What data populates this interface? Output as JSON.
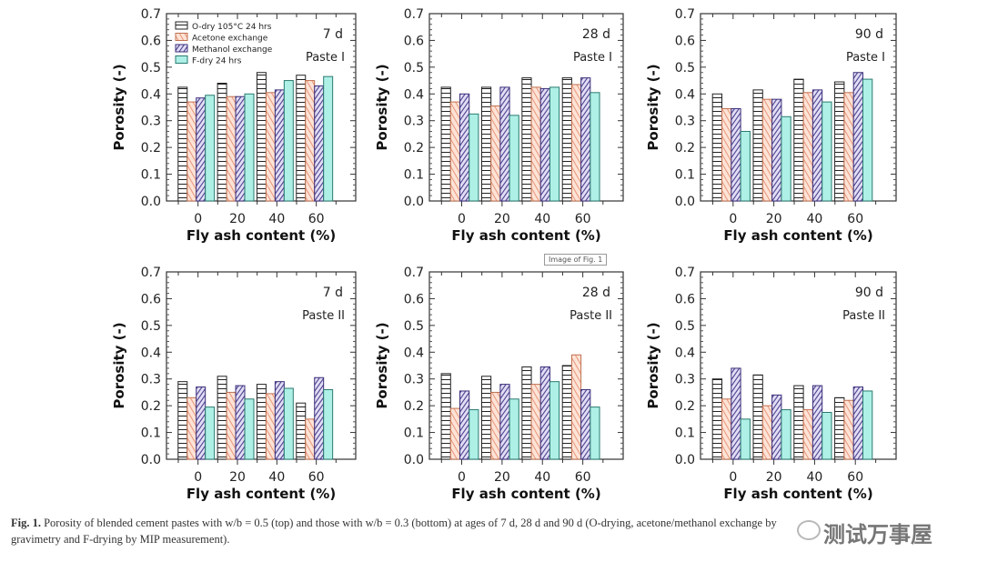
{
  "chart_data": [
    {
      "type": "bar",
      "title": "7 d",
      "subtitle": "Paste I",
      "xlabel": "Fly ash content (%)",
      "ylabel": "Porosity (-)",
      "categories": [
        "0",
        "20",
        "40",
        "60"
      ],
      "ylim": [
        0,
        0.7
      ],
      "yticks": [
        "0.0",
        "0.1",
        "0.2",
        "0.3",
        "0.4",
        "0.5",
        "0.6",
        "0.7"
      ],
      "legend": "top-left",
      "series": [
        {
          "name": "O-dry 105°C 24 hrs",
          "values": [
            0.425,
            0.44,
            0.48,
            0.47
          ]
        },
        {
          "name": "Acetone exchange",
          "values": [
            0.37,
            0.39,
            0.405,
            0.45
          ]
        },
        {
          "name": "Methanol exchange",
          "values": [
            0.385,
            0.39,
            0.415,
            0.43
          ]
        },
        {
          "name": "F-dry 24 hrs",
          "values": [
            0.395,
            0.4,
            0.45,
            0.465
          ]
        }
      ]
    },
    {
      "type": "bar",
      "title": "28 d",
      "subtitle": "Paste I",
      "xlabel": "Fly ash content (%)",
      "ylabel": "Porosity (-)",
      "categories": [
        "0",
        "20",
        "40",
        "60"
      ],
      "ylim": [
        0,
        0.7
      ],
      "yticks": [
        "0.0",
        "0.1",
        "0.2",
        "0.3",
        "0.4",
        "0.5",
        "0.6",
        "0.7"
      ],
      "series": [
        {
          "name": "O-dry 105°C 24 hrs",
          "values": [
            0.425,
            0.425,
            0.46,
            0.46
          ]
        },
        {
          "name": "Acetone exchange",
          "values": [
            0.37,
            0.355,
            0.425,
            0.435
          ]
        },
        {
          "name": "Methanol exchange",
          "values": [
            0.4,
            0.425,
            0.42,
            0.46
          ]
        },
        {
          "name": "F-dry 24 hrs",
          "values": [
            0.325,
            0.32,
            0.425,
            0.405
          ]
        }
      ]
    },
    {
      "type": "bar",
      "title": "90 d",
      "subtitle": "Paste I",
      "xlabel": "Fly ash content (%)",
      "ylabel": "Porosity (-)",
      "categories": [
        "0",
        "20",
        "40",
        "60"
      ],
      "ylim": [
        0,
        0.7
      ],
      "yticks": [
        "0.0",
        "0.1",
        "0.2",
        "0.3",
        "0.4",
        "0.5",
        "0.6",
        "0.7"
      ],
      "series": [
        {
          "name": "O-dry 105°C 24 hrs",
          "values": [
            0.4,
            0.415,
            0.455,
            0.445
          ]
        },
        {
          "name": "Acetone exchange",
          "values": [
            0.345,
            0.38,
            0.405,
            0.405
          ]
        },
        {
          "name": "Methanol exchange",
          "values": [
            0.345,
            0.38,
            0.415,
            0.48
          ]
        },
        {
          "name": "F-dry 24 hrs",
          "values": [
            0.26,
            0.315,
            0.37,
            0.455
          ]
        }
      ]
    },
    {
      "type": "bar",
      "title": "7 d",
      "subtitle": "Paste II",
      "xlabel": "Fly ash content (%)",
      "ylabel": "Porosity (-)",
      "categories": [
        "0",
        "20",
        "40",
        "60"
      ],
      "ylim": [
        0,
        0.7
      ],
      "yticks": [
        "0.0",
        "0.1",
        "0.2",
        "0.3",
        "0.4",
        "0.5",
        "0.6",
        "0.7"
      ],
      "series": [
        {
          "name": "O-dry 105°C 24 hrs",
          "values": [
            0.29,
            0.31,
            0.28,
            0.21
          ]
        },
        {
          "name": "Acetone exchange",
          "values": [
            0.23,
            0.25,
            0.245,
            0.15
          ]
        },
        {
          "name": "Methanol exchange",
          "values": [
            0.27,
            0.275,
            0.29,
            0.305
          ]
        },
        {
          "name": "F-dry 24 hrs",
          "values": [
            0.195,
            0.225,
            0.265,
            0.26
          ]
        }
      ]
    },
    {
      "type": "bar",
      "title": "28 d",
      "subtitle": "Paste II",
      "xlabel": "Fly ash content (%)",
      "ylabel": "Porosity (-)",
      "categories": [
        "0",
        "20",
        "40",
        "60"
      ],
      "ylim": [
        0,
        0.7
      ],
      "yticks": [
        "0.0",
        "0.1",
        "0.2",
        "0.3",
        "0.4",
        "0.5",
        "0.6",
        "0.7"
      ],
      "series": [
        {
          "name": "O-dry 105°C 24 hrs",
          "values": [
            0.32,
            0.31,
            0.345,
            0.35
          ]
        },
        {
          "name": "Acetone exchange",
          "values": [
            0.19,
            0.25,
            0.28,
            0.39
          ]
        },
        {
          "name": "Methanol exchange",
          "values": [
            0.255,
            0.28,
            0.345,
            0.26
          ]
        },
        {
          "name": "F-dry 24 hrs",
          "values": [
            0.185,
            0.225,
            0.29,
            0.195
          ]
        }
      ]
    },
    {
      "type": "bar",
      "title": "90 d",
      "subtitle": "Paste II",
      "xlabel": "Fly ash content (%)",
      "ylabel": "Porosity (-)",
      "categories": [
        "0",
        "20",
        "40",
        "60"
      ],
      "ylim": [
        0,
        0.7
      ],
      "yticks": [
        "0.0",
        "0.1",
        "0.2",
        "0.3",
        "0.4",
        "0.5",
        "0.6",
        "0.7"
      ],
      "series": [
        {
          "name": "O-dry 105°C 24 hrs",
          "values": [
            0.3,
            0.315,
            0.275,
            0.23
          ]
        },
        {
          "name": "Acetone exchange",
          "values": [
            0.225,
            0.2,
            0.185,
            0.22
          ]
        },
        {
          "name": "Methanol exchange",
          "values": [
            0.34,
            0.24,
            0.275,
            0.27
          ]
        },
        {
          "name": "F-dry 24 hrs",
          "values": [
            0.15,
            0.185,
            0.175,
            0.255
          ]
        }
      ]
    }
  ],
  "colors": {
    "odry": "#ffffff",
    "acetone": "#fde3d6",
    "acetone_hatch": "#e8957a",
    "methanol": "#e2def6",
    "methanol_hatch": "#4a3f8a",
    "fdry": "#aef0e6"
  },
  "caption": {
    "label": "Fig. 1.",
    "text": "Porosity of blended cement pastes with w/b = 0.5 (top) and those with w/b = 0.3 (bottom) at ages of 7 d, 28 d and 90 d (O-drying, acetone/methanol exchange by gravimetry and F-drying by MIP measurement)."
  },
  "tooltip": "Image of Fig. 1",
  "watermark": "测试万事屋"
}
